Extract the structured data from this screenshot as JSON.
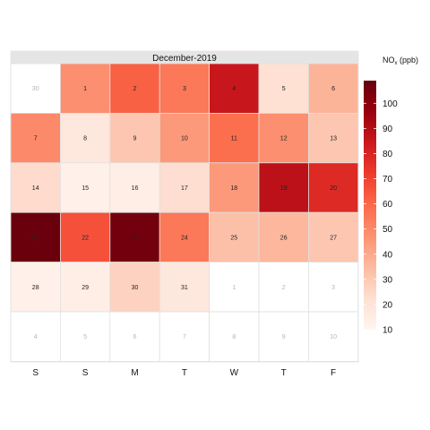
{
  "chart_data": {
    "type": "heatmap",
    "title": "December-2019",
    "weekday_labels": [
      "S",
      "S",
      "M",
      "T",
      "W",
      "T",
      "F"
    ],
    "weeks": [
      [
        {
          "day": "30",
          "value": null,
          "in_month": false
        },
        {
          "day": "1",
          "value": 48,
          "in_month": true
        },
        {
          "day": "2",
          "value": 62,
          "in_month": true
        },
        {
          "day": "3",
          "value": 55,
          "in_month": true
        },
        {
          "day": "4",
          "value": 85,
          "in_month": true
        },
        {
          "day": "5",
          "value": 22,
          "in_month": true
        },
        {
          "day": "6",
          "value": 37,
          "in_month": true
        }
      ],
      [
        {
          "day": "7",
          "value": 50,
          "in_month": true
        },
        {
          "day": "8",
          "value": 18,
          "in_month": true
        },
        {
          "day": "9",
          "value": 31,
          "in_month": true
        },
        {
          "day": "10",
          "value": 45,
          "in_month": true
        },
        {
          "day": "11",
          "value": 58,
          "in_month": true
        },
        {
          "day": "12",
          "value": 48,
          "in_month": true
        },
        {
          "day": "13",
          "value": 31,
          "in_month": true
        }
      ],
      [
        {
          "day": "14",
          "value": 24,
          "in_month": true
        },
        {
          "day": "15",
          "value": 13,
          "in_month": true
        },
        {
          "day": "16",
          "value": 14,
          "in_month": true
        },
        {
          "day": "17",
          "value": 23,
          "in_month": true
        },
        {
          "day": "18",
          "value": 45,
          "in_month": true
        },
        {
          "day": "19",
          "value": 88,
          "in_month": true
        },
        {
          "day": "20",
          "value": 78,
          "in_month": true
        }
      ],
      [
        {
          "day": "21",
          "value": 108,
          "in_month": true
        },
        {
          "day": "22",
          "value": 66,
          "in_month": true
        },
        {
          "day": "23",
          "value": 106,
          "in_month": true
        },
        {
          "day": "24",
          "value": 55,
          "in_month": true
        },
        {
          "day": "25",
          "value": 33,
          "in_month": true
        },
        {
          "day": "26",
          "value": 36,
          "in_month": true
        },
        {
          "day": "27",
          "value": 31,
          "in_month": true
        }
      ],
      [
        {
          "day": "28",
          "value": 13,
          "in_month": true
        },
        {
          "day": "29",
          "value": 14,
          "in_month": true
        },
        {
          "day": "30",
          "value": 27,
          "in_month": true
        },
        {
          "day": "31",
          "value": 18,
          "in_month": true
        },
        {
          "day": "1",
          "value": null,
          "in_month": false
        },
        {
          "day": "2",
          "value": null,
          "in_month": false
        },
        {
          "day": "3",
          "value": null,
          "in_month": false
        }
      ],
      [
        {
          "day": "4",
          "value": null,
          "in_month": false
        },
        {
          "day": "5",
          "value": null,
          "in_month": false
        },
        {
          "day": "6",
          "value": null,
          "in_month": false
        },
        {
          "day": "7",
          "value": null,
          "in_month": false
        },
        {
          "day": "8",
          "value": null,
          "in_month": false
        },
        {
          "day": "9",
          "value": null,
          "in_month": false
        },
        {
          "day": "10",
          "value": null,
          "in_month": false
        }
      ]
    ],
    "legend": {
      "title_main": "NO",
      "title_sub": "x",
      "title_unit": " (ppb)",
      "range": [
        10,
        109
      ],
      "ticks": [
        10,
        20,
        30,
        40,
        50,
        60,
        70,
        80,
        90,
        100
      ],
      "colors": [
        "#fff5f0",
        "#fee0d2",
        "#fcbba1",
        "#fc9272",
        "#fb6a4a",
        "#ef3b2c",
        "#cb181d",
        "#99000d",
        "#67000d"
      ]
    },
    "grid": true,
    "legend_position": "right"
  }
}
